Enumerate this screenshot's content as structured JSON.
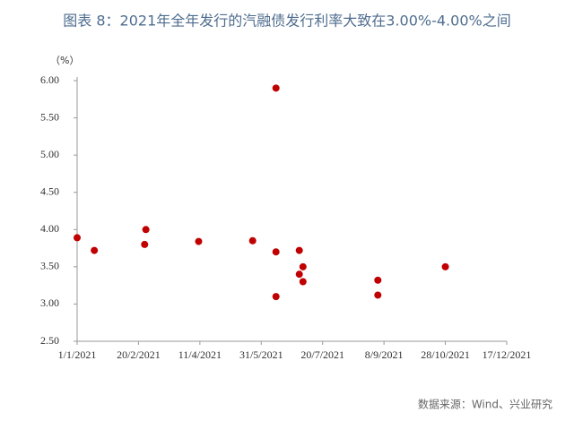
{
  "chart_data": {
    "type": "scatter",
    "title": "图表 8：2021年全年发行的汽融债发行利率大致在3.00%-4.00%之间",
    "y_unit_label": "（%）",
    "source": "数据来源：Wind、兴业研究",
    "color": "#c00000",
    "x": [
      "2021-01-01",
      "2021-01-15",
      "2021-02-25",
      "2021-02-26",
      "2021-04-10",
      "2021-05-24",
      "2021-06-12",
      "2021-06-12",
      "2021-06-12",
      "2021-07-01",
      "2021-07-01",
      "2021-07-04",
      "2021-07-04",
      "2021-09-03",
      "2021-09-03",
      "2021-10-28"
    ],
    "values": [
      3.89,
      3.72,
      3.8,
      4.0,
      3.84,
      3.85,
      5.9,
      3.7,
      3.1,
      3.72,
      3.4,
      3.5,
      3.3,
      3.32,
      3.12,
      3.5
    ],
    "xlim": [
      "2021-01-01",
      "2021-12-17"
    ],
    "xticks": [
      {
        "value": "2021-01-01",
        "label": "1/1/2021"
      },
      {
        "value": "2021-02-20",
        "label": "20/2/2021"
      },
      {
        "value": "2021-04-11",
        "label": "11/4/2021"
      },
      {
        "value": "2021-05-31",
        "label": "31/5/2021"
      },
      {
        "value": "2021-07-20",
        "label": "20/7/2021"
      },
      {
        "value": "2021-09-08",
        "label": "8/9/2021"
      },
      {
        "value": "2021-10-28",
        "label": "28/10/2021"
      },
      {
        "value": "2021-12-17",
        "label": "17/12/2021"
      }
    ],
    "ylim": [
      2.5,
      6.0
    ],
    "yticks": [
      {
        "value": 2.5,
        "label": "2.50"
      },
      {
        "value": 3.0,
        "label": "3.00"
      },
      {
        "value": 3.5,
        "label": "3.50"
      },
      {
        "value": 4.0,
        "label": "4.00"
      },
      {
        "value": 4.5,
        "label": "4.50"
      },
      {
        "value": 5.0,
        "label": "5.00"
      },
      {
        "value": 5.5,
        "label": "5.50"
      },
      {
        "value": 6.0,
        "label": "6.00"
      }
    ],
    "grid": false
  }
}
